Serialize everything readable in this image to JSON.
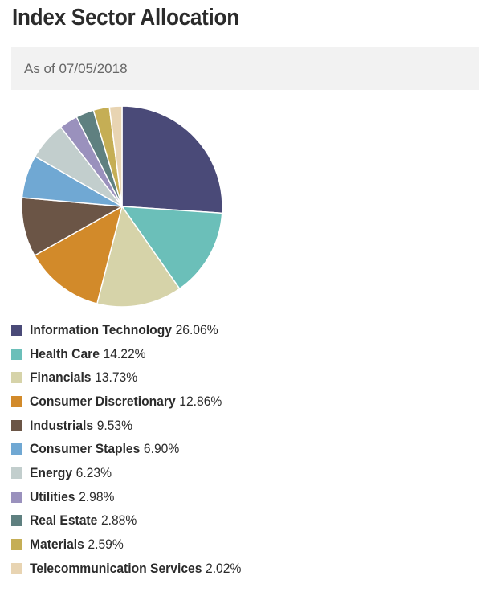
{
  "page": {
    "title": "Index Sector Allocation",
    "as_of": "As of 07/05/2018"
  },
  "chart_data": {
    "type": "pie",
    "title": "",
    "categories": [
      "Information Technology",
      "Health Care",
      "Financials",
      "Consumer Discretionary",
      "Industrials",
      "Consumer Staples",
      "Energy",
      "Utilities",
      "Real Estate",
      "Materials",
      "Telecommunication Services"
    ],
    "values": [
      26.06,
      14.22,
      13.73,
      12.86,
      9.53,
      6.9,
      6.23,
      2.98,
      2.88,
      2.59,
      2.02
    ],
    "value_labels": [
      "26.06%",
      "14.22%",
      "13.73%",
      "12.86%",
      "9.53%",
      "6.90%",
      "6.23%",
      "2.98%",
      "2.88%",
      "2.59%",
      "2.02%"
    ],
    "colors": [
      "#4a4a78",
      "#6bbfb9",
      "#d6d3a9",
      "#d28a2a",
      "#6b5546",
      "#70a8d3",
      "#c2cecd",
      "#9a91bd",
      "#5f8080",
      "#c5ae55",
      "#e8d4b2"
    ],
    "legend_position": "bottom-left"
  }
}
